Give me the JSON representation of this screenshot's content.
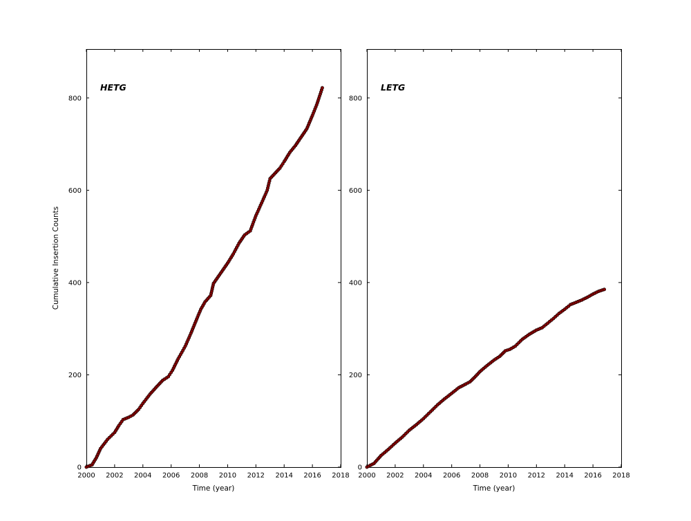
{
  "figure": {
    "background": "#ffffff",
    "xlabel": "Time (year)",
    "ylabel": "Cumulative Insertion Counts"
  },
  "chart_data": [
    {
      "type": "scatter",
      "id": "hetg",
      "panel_label": "HETG",
      "xlabel": "Time (year)",
      "ylabel": "Cumulative Insertion Counts",
      "show_ylabel": true,
      "xlim": [
        2000,
        2018
      ],
      "ylim": [
        0,
        906
      ],
      "xticks": [
        2000,
        2002,
        2004,
        2006,
        2008,
        2010,
        2012,
        2014,
        2016,
        2018
      ],
      "yticks": [
        0,
        200,
        400,
        600,
        800
      ],
      "grid": false,
      "marker": {
        "shape": "circle",
        "color": "#8b0000",
        "edge_color": "#000000",
        "radius": 2.2
      },
      "points": [
        [
          2000.0,
          0
        ],
        [
          2000.4,
          5
        ],
        [
          2000.7,
          20
        ],
        [
          2001.0,
          40
        ],
        [
          2001.5,
          60
        ],
        [
          2002.0,
          75
        ],
        [
          2002.3,
          90
        ],
        [
          2002.6,
          103
        ],
        [
          2003.0,
          108
        ],
        [
          2003.3,
          113
        ],
        [
          2003.7,
          125
        ],
        [
          2004.0,
          138
        ],
        [
          2004.5,
          158
        ],
        [
          2005.0,
          175
        ],
        [
          2005.4,
          188
        ],
        [
          2005.8,
          196
        ],
        [
          2006.1,
          210
        ],
        [
          2006.5,
          235
        ],
        [
          2007.0,
          262
        ],
        [
          2007.4,
          290
        ],
        [
          2007.8,
          320
        ],
        [
          2008.1,
          342
        ],
        [
          2008.4,
          358
        ],
        [
          2008.8,
          372
        ],
        [
          2009.0,
          398
        ],
        [
          2009.5,
          420
        ],
        [
          2010.0,
          442
        ],
        [
          2010.4,
          462
        ],
        [
          2010.8,
          485
        ],
        [
          2011.2,
          503
        ],
        [
          2011.6,
          512
        ],
        [
          2012.0,
          545
        ],
        [
          2012.4,
          572
        ],
        [
          2012.8,
          600
        ],
        [
          2013.0,
          625
        ],
        [
          2013.3,
          635
        ],
        [
          2013.7,
          648
        ],
        [
          2014.0,
          662
        ],
        [
          2014.4,
          682
        ],
        [
          2014.8,
          697
        ],
        [
          2015.2,
          715
        ],
        [
          2015.6,
          733
        ],
        [
          2016.0,
          762
        ],
        [
          2016.3,
          785
        ],
        [
          2016.55,
          808
        ],
        [
          2016.7,
          822
        ]
      ]
    },
    {
      "type": "scatter",
      "id": "letg",
      "panel_label": "LETG",
      "xlabel": "Time (year)",
      "ylabel": "Cumulative Insertion Counts",
      "show_ylabel": false,
      "xlim": [
        2000,
        2018
      ],
      "ylim": [
        0,
        906
      ],
      "xticks": [
        2000,
        2002,
        2004,
        2006,
        2008,
        2010,
        2012,
        2014,
        2016,
        2018
      ],
      "yticks": [
        0,
        200,
        400,
        600,
        800
      ],
      "grid": false,
      "marker": {
        "shape": "circle",
        "color": "#8b0000",
        "edge_color": "#000000",
        "radius": 2.2
      },
      "points": [
        [
          2000.0,
          0
        ],
        [
          2000.5,
          8
        ],
        [
          2001.0,
          25
        ],
        [
          2001.5,
          38
        ],
        [
          2002.0,
          52
        ],
        [
          2002.5,
          65
        ],
        [
          2003.0,
          80
        ],
        [
          2003.5,
          92
        ],
        [
          2004.0,
          105
        ],
        [
          2004.5,
          120
        ],
        [
          2005.0,
          135
        ],
        [
          2005.5,
          148
        ],
        [
          2006.0,
          160
        ],
        [
          2006.5,
          172
        ],
        [
          2007.0,
          180
        ],
        [
          2007.3,
          185
        ],
        [
          2007.7,
          197
        ],
        [
          2008.0,
          207
        ],
        [
          2008.5,
          220
        ],
        [
          2009.0,
          232
        ],
        [
          2009.4,
          240
        ],
        [
          2009.8,
          252
        ],
        [
          2010.1,
          255
        ],
        [
          2010.5,
          262
        ],
        [
          2011.0,
          277
        ],
        [
          2011.5,
          288
        ],
        [
          2012.0,
          297
        ],
        [
          2012.4,
          302
        ],
        [
          2012.8,
          312
        ],
        [
          2013.2,
          322
        ],
        [
          2013.6,
          333
        ],
        [
          2014.0,
          342
        ],
        [
          2014.4,
          352
        ],
        [
          2014.8,
          357
        ],
        [
          2015.2,
          362
        ],
        [
          2015.6,
          368
        ],
        [
          2016.0,
          375
        ],
        [
          2016.4,
          381
        ],
        [
          2016.8,
          385
        ]
      ]
    }
  ]
}
